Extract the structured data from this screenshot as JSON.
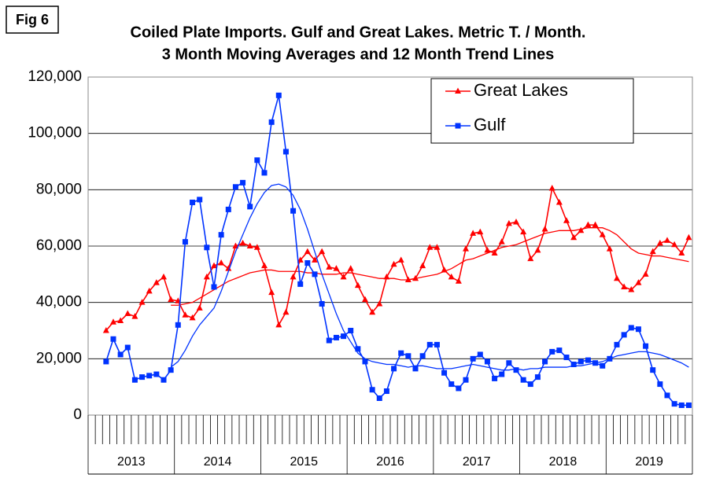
{
  "chart_data": {
    "type": "line",
    "label": "Fig 6",
    "title": "Coiled Plate Imports. Gulf and Great Lakes. Metric T. / Month.",
    "subtitle": "3 Month Moving Averages and 12 Month Trend Lines",
    "categories": [
      null,
      null,
      null,
      null,
      null,
      null,
      null,
      null,
      null,
      null,
      null,
      null,
      null,
      null,
      null,
      null,
      null,
      null,
      null,
      null,
      null,
      null,
      null,
      null,
      null,
      null,
      null,
      null,
      null,
      null,
      null,
      null,
      null,
      null,
      null,
      null,
      null,
      null,
      null,
      null,
      null,
      null,
      null,
      null,
      null,
      null,
      null,
      null,
      null,
      null,
      null,
      null,
      null,
      null,
      null,
      null,
      null,
      null,
      null,
      null,
      null,
      null,
      null,
      null,
      null,
      null,
      null,
      null,
      null,
      null,
      null,
      null,
      null,
      null,
      null,
      null,
      null,
      null,
      null,
      null,
      null,
      null,
      null,
      null
    ],
    "years": [
      "2013",
      "2014",
      "2015",
      "2016",
      "2017",
      "2018",
      "2019"
    ],
    "ylim": [
      0,
      120000
    ],
    "yticks": [
      0,
      {
        "value": 20000,
        "label": "20,000"
      },
      {
        "value": 40000,
        "label": "40,000"
      },
      {
        "value": 60000,
        "label": "60,000"
      },
      {
        "value": 80000,
        "label": "80,000"
      },
      {
        "value": 100000,
        "label": "100,000"
      },
      {
        "value": 120000,
        "label": "120,000"
      }
    ],
    "grid": true,
    "legend": "upper right",
    "series": [
      {
        "name": "Great Lakes",
        "color": "#ff0000",
        "marker": "triangle",
        "values": [
          null,
          null,
          30000,
          33000,
          33500,
          36000,
          35000,
          40000,
          44000,
          47000,
          49000,
          41000,
          40500,
          35500,
          34500,
          38000,
          49000,
          53000,
          54000,
          52000,
          60000,
          61000,
          60000,
          59500,
          53000,
          43500,
          32000,
          36500,
          49000,
          55000,
          58000,
          55000,
          58000,
          52500,
          52000,
          49000,
          52000,
          46000,
          41000,
          36500,
          39500,
          49000,
          53500,
          55000,
          48000,
          48500,
          53000,
          59500,
          59500,
          51500,
          49000,
          47500,
          59000,
          64500,
          65000,
          58500,
          57500,
          61500,
          68000,
          68500,
          65000,
          55500,
          58500,
          66000,
          80500,
          75500,
          69000,
          63000,
          65500,
          67500,
          67500,
          64000,
          59000,
          48500,
          45500,
          44500,
          47000,
          50000,
          58000,
          61000,
          62000,
          60500,
          57500,
          63000
        ],
        "trend": [
          null,
          null,
          null,
          null,
          null,
          null,
          null,
          null,
          null,
          null,
          null,
          39000,
          39000,
          39500,
          40000,
          41500,
          43000,
          44500,
          46000,
          47500,
          48500,
          49500,
          50500,
          51000,
          51500,
          51500,
          51000,
          51000,
          51000,
          51000,
          50500,
          50500,
          50000,
          50000,
          50000,
          50500,
          50500,
          50000,
          49500,
          49000,
          48500,
          48500,
          48500,
          48000,
          48000,
          48500,
          49000,
          49500,
          50000,
          51000,
          52000,
          53500,
          55000,
          55500,
          56500,
          57500,
          58500,
          59500,
          60000,
          60500,
          61500,
          62500,
          63500,
          64500,
          65000,
          65500,
          65500,
          65500,
          66000,
          66500,
          66500,
          66500,
          65500,
          64000,
          61500,
          59000,
          57500,
          57000,
          56500,
          56500,
          56000,
          55500,
          55000,
          54500
        ]
      },
      {
        "name": "Gulf",
        "color": "#0033ff",
        "marker": "square",
        "values": [
          null,
          null,
          19000,
          27000,
          21500,
          24000,
          12500,
          13500,
          14000,
          14500,
          12500,
          16000,
          32000,
          61500,
          75500,
          76500,
          59500,
          45500,
          64000,
          73000,
          81000,
          82500,
          74000,
          90500,
          86000,
          104000,
          113500,
          93500,
          72500,
          46500,
          54000,
          50000,
          39500,
          26500,
          27500,
          28000,
          30000,
          23500,
          19000,
          9000,
          6000,
          8500,
          16500,
          22000,
          21000,
          16500,
          21000,
          25000,
          25000,
          15000,
          11000,
          9500,
          12500,
          20000,
          21500,
          19000,
          13000,
          14500,
          18500,
          16000,
          12500,
          11000,
          13500,
          19000,
          22500,
          23000,
          20500,
          18000,
          19000,
          19500,
          18500,
          17500,
          20000,
          25000,
          28500,
          31000,
          30500,
          24500,
          16000,
          11000,
          7000,
          4000,
          3500,
          3500
        ],
        "trend": [
          null,
          null,
          null,
          null,
          null,
          null,
          null,
          null,
          null,
          null,
          null,
          17000,
          19000,
          23000,
          28000,
          32000,
          35000,
          38000,
          44000,
          51000,
          58000,
          64000,
          70000,
          75000,
          79000,
          81500,
          82000,
          81000,
          78000,
          73000,
          66000,
          58000,
          50000,
          43000,
          36000,
          30000,
          26000,
          22000,
          20000,
          19000,
          18500,
          18000,
          18000,
          17500,
          17000,
          17500,
          17500,
          17000,
          16500,
          16500,
          16500,
          17000,
          17500,
          18000,
          17500,
          17000,
          16500,
          16000,
          16000,
          16500,
          16000,
          16500,
          16500,
          17000,
          17000,
          17000,
          17000,
          17500,
          17500,
          18000,
          18500,
          19000,
          20000,
          21000,
          21500,
          22000,
          22500,
          22500,
          22000,
          21500,
          20500,
          19500,
          18500,
          17000
        ]
      }
    ]
  }
}
